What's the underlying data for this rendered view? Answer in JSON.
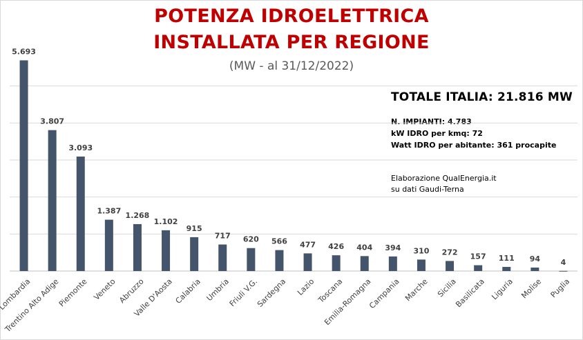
{
  "title": {
    "line1": "POTENZA IDROELETTRICA",
    "line2": "INSTALLATA PER REGIONE",
    "subtitle": "(MW - al 31/12/2022)"
  },
  "info": {
    "total": "TOTALE ITALIA:  21.816 MW",
    "stats": [
      "N. IMPIANTI:  4.783",
      "kW IDRO  per kmq: 72",
      "Watt IDRO per abitante: 361 procapite"
    ],
    "source": [
      "Elaborazione QualEnergia.it",
      "su dati Gaudi-Terna"
    ]
  },
  "colors": {
    "bar": "#44546a",
    "title": "#c00000",
    "grid": "#d9d9d9"
  },
  "chart_data": {
    "type": "bar",
    "title": "POTENZA IDROELETTRICA INSTALLATA PER REGIONE",
    "subtitle": "(MW - al 31/12/2022)",
    "categories": [
      "Lombardia",
      "Trentino Alto Adige",
      "Piemonte",
      "Veneto",
      "Abruzzo",
      "Valle D'Aosta",
      "Calabria",
      "Umbria",
      "Friuli V.G.",
      "Sardegna",
      "Lazio",
      "Toscana",
      "Emilia-Romagna",
      "Campania",
      "Marche",
      "Sicilia",
      "Basilicata",
      "Liguria",
      "Molise",
      "Puglia"
    ],
    "values": [
      5693,
      3807,
      3093,
      1387,
      1268,
      1102,
      915,
      717,
      620,
      566,
      477,
      426,
      404,
      394,
      310,
      272,
      157,
      111,
      94,
      4
    ],
    "value_labels": [
      "5.693",
      "3.807",
      "3.093",
      "1.387",
      "1.268",
      "1.102",
      "915",
      "717",
      "620",
      "566",
      "477",
      "426",
      "404",
      "394",
      "310",
      "272",
      "157",
      "111",
      "94",
      "4"
    ],
    "ylim": [
      0,
      6000
    ],
    "gridlines": [
      0,
      1000,
      2000,
      3000,
      4000,
      5000
    ],
    "grid": true,
    "legend": "none",
    "xlabel": "",
    "ylabel": ""
  }
}
